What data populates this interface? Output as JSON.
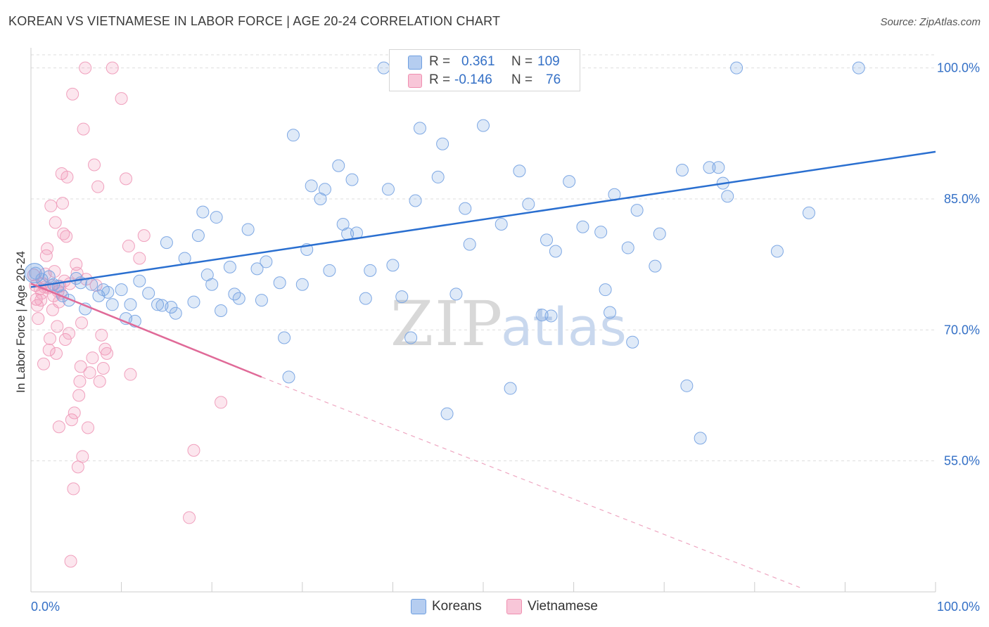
{
  "title": "KOREAN VS VIETNAMESE IN LABOR FORCE | AGE 20-24 CORRELATION CHART",
  "source": "Source: ZipAtlas.com",
  "watermark": {
    "part1": "ZIP",
    "part2": "atlas"
  },
  "legend": {
    "rows": [
      {
        "r_label": "R =",
        "r_value": "0.361",
        "n_label": "N =",
        "n_value": "109"
      },
      {
        "r_label": "R =",
        "r_value": "-0.146",
        "n_label": "N =",
        "n_value": "76"
      }
    ]
  },
  "bottom_legend": [
    {
      "label": "Koreans"
    },
    {
      "label": "Vietnamese"
    }
  ],
  "chart_data": {
    "type": "scatter",
    "title": "KOREAN VS VIETNAMESE IN LABOR FORCE | AGE 20-24 CORRELATION CHART",
    "xlabel": "",
    "ylabel": "In Labor Force | Age 20-24",
    "xlim": [
      0,
      100
    ],
    "ylim": [
      40,
      101.5
    ],
    "x_tick_labels": [
      "0.0%",
      "100.0%"
    ],
    "y_ticks": [
      55,
      70,
      85,
      100
    ],
    "y_tick_labels": [
      "55.0%",
      "70.0%",
      "85.0%",
      "100.0%"
    ],
    "grid": true,
    "legend_position": "top-center",
    "colors": {
      "Koreans": "#6f9fe0",
      "Vietnamese": "#f08fb0",
      "korean_line": "#2a6fd0",
      "vietnamese_line": "#e06a98",
      "tick_label": "#3470c6"
    },
    "series": [
      {
        "name": "Koreans",
        "r": 0.361,
        "n": 109,
        "trend": {
          "x": [
            0,
            100
          ],
          "y": [
            74.9,
            90.4
          ]
        },
        "points": [
          [
            0.5,
            76.5
          ],
          [
            1.2,
            75.8
          ],
          [
            2,
            76.1
          ],
          [
            2.5,
            75.2
          ],
          [
            3,
            75
          ],
          [
            3.5,
            73.9
          ],
          [
            4.2,
            73.4
          ],
          [
            5,
            75.9
          ],
          [
            5.5,
            75.4
          ],
          [
            6,
            72.4
          ],
          [
            6.7,
            75.2
          ],
          [
            7.5,
            73.9
          ],
          [
            8,
            74.6
          ],
          [
            8.5,
            74.3
          ],
          [
            9,
            72.9
          ],
          [
            10,
            74.6
          ],
          [
            10.5,
            71.3
          ],
          [
            11,
            72.9
          ],
          [
            11.5,
            71
          ],
          [
            12,
            75.6
          ],
          [
            13,
            74.2
          ],
          [
            14,
            72.9
          ],
          [
            14.5,
            72.8
          ],
          [
            15,
            80
          ],
          [
            15.5,
            72.6
          ],
          [
            16,
            71.9
          ],
          [
            17,
            78.2
          ],
          [
            18,
            73.2
          ],
          [
            18.5,
            80.8
          ],
          [
            19,
            83.5
          ],
          [
            19.5,
            76.3
          ],
          [
            20,
            75.2
          ],
          [
            20.5,
            82.9
          ],
          [
            21,
            72.2
          ],
          [
            22,
            77.2
          ],
          [
            22.5,
            74.1
          ],
          [
            23,
            73.6
          ],
          [
            24,
            81.5
          ],
          [
            25,
            77
          ],
          [
            25.5,
            73.4
          ],
          [
            26,
            77.8
          ],
          [
            27.5,
            75.4
          ],
          [
            28,
            69.1
          ],
          [
            28.5,
            64.6
          ],
          [
            29,
            92.3
          ],
          [
            30,
            75.2
          ],
          [
            30.5,
            79.2
          ],
          [
            31,
            86.5
          ],
          [
            32,
            85
          ],
          [
            32.5,
            86.1
          ],
          [
            33,
            76.8
          ],
          [
            34,
            88.8
          ],
          [
            34.5,
            82.1
          ],
          [
            35,
            81
          ],
          [
            35.5,
            87.2
          ],
          [
            36,
            81.1
          ],
          [
            37,
            73.6
          ],
          [
            37.5,
            76.8
          ],
          [
            39,
            100
          ],
          [
            39.5,
            86.1
          ],
          [
            40,
            77.4
          ],
          [
            41,
            73.8
          ],
          [
            42,
            69.1
          ],
          [
            42.5,
            84.8
          ],
          [
            43,
            93.1
          ],
          [
            45,
            87.5
          ],
          [
            45.5,
            91.3
          ],
          [
            46,
            60.4
          ],
          [
            47,
            74.1
          ],
          [
            48,
            83.9
          ],
          [
            48.5,
            79.8
          ],
          [
            49,
            100
          ],
          [
            49.5,
            100
          ],
          [
            50,
            93.4
          ],
          [
            52,
            82.1
          ],
          [
            53,
            63.3
          ],
          [
            54,
            88.2
          ],
          [
            55,
            84.4
          ],
          [
            56.5,
            71.7
          ],
          [
            57,
            80.3
          ],
          [
            57.5,
            71.6
          ],
          [
            58,
            79
          ],
          [
            59.5,
            87
          ],
          [
            61,
            81.8
          ],
          [
            63,
            81.2
          ],
          [
            63.5,
            74.6
          ],
          [
            64,
            72
          ],
          [
            64.5,
            85.5
          ],
          [
            66,
            79.4
          ],
          [
            66.5,
            68.6
          ],
          [
            67,
            83.7
          ],
          [
            69,
            77.3
          ],
          [
            69.5,
            81
          ],
          [
            72,
            88.3
          ],
          [
            72.5,
            63.6
          ],
          [
            74,
            57.6
          ],
          [
            75,
            88.6
          ],
          [
            76,
            88.6
          ],
          [
            76.5,
            86.8
          ],
          [
            77,
            85.3
          ],
          [
            78,
            100
          ],
          [
            82.5,
            79
          ],
          [
            86,
            83.4
          ],
          [
            91.5,
            100
          ]
        ]
      },
      {
        "name": "Vietnamese",
        "r": -0.146,
        "n": 76,
        "trend": {
          "x": [
            0,
            25.5
          ],
          "y": [
            75.3,
            64.6
          ],
          "dash_x": [
            25.5,
            85
          ],
          "dash_y": [
            64.6,
            40.5
          ]
        },
        "points": [
          [
            0.3,
            76.3
          ],
          [
            0.5,
            75.1
          ],
          [
            0.6,
            73.5
          ],
          [
            0.7,
            72.8
          ],
          [
            0.8,
            71.3
          ],
          [
            1,
            74.7
          ],
          [
            1.1,
            73.4
          ],
          [
            1.2,
            74.2
          ],
          [
            1.3,
            75.3
          ],
          [
            1.4,
            66.1
          ],
          [
            1.5,
            74.9
          ],
          [
            1.6,
            76.4
          ],
          [
            1.7,
            78.5
          ],
          [
            1.8,
            79.3
          ],
          [
            2,
            67.7
          ],
          [
            2.1,
            69
          ],
          [
            2.2,
            84.2
          ],
          [
            2.3,
            75.1
          ],
          [
            2.4,
            72.3
          ],
          [
            2.5,
            73.9
          ],
          [
            2.6,
            76.7
          ],
          [
            2.7,
            82.3
          ],
          [
            2.8,
            67.3
          ],
          [
            2.9,
            70.4
          ],
          [
            3,
            74.4
          ],
          [
            3.1,
            58.9
          ],
          [
            3.2,
            75
          ],
          [
            3.3,
            74.2
          ],
          [
            3.4,
            87.9
          ],
          [
            3.5,
            84.5
          ],
          [
            3.6,
            81
          ],
          [
            3.7,
            75.6
          ],
          [
            3.8,
            68.9
          ],
          [
            3.9,
            80.7
          ],
          [
            4,
            87.5
          ],
          [
            4.2,
            69.6
          ],
          [
            4.3,
            75.3
          ],
          [
            4.4,
            43.5
          ],
          [
            4.5,
            59.7
          ],
          [
            4.6,
            97
          ],
          [
            4.7,
            51.8
          ],
          [
            4.8,
            60.5
          ],
          [
            5,
            77.5
          ],
          [
            5.1,
            76.5
          ],
          [
            5.2,
            54.3
          ],
          [
            5.3,
            62.5
          ],
          [
            5.4,
            64.1
          ],
          [
            5.5,
            65.8
          ],
          [
            5.6,
            70.8
          ],
          [
            5.7,
            55.5
          ],
          [
            5.8,
            93
          ],
          [
            6,
            100
          ],
          [
            6.1,
            75.8
          ],
          [
            6.3,
            58.8
          ],
          [
            6.5,
            65.1
          ],
          [
            6.8,
            66.8
          ],
          [
            7,
            88.9
          ],
          [
            7.2,
            75.1
          ],
          [
            7.4,
            86.4
          ],
          [
            7.6,
            64.1
          ],
          [
            7.8,
            69.4
          ],
          [
            8,
            65.6
          ],
          [
            8.2,
            67.8
          ],
          [
            8.4,
            67.3
          ],
          [
            9,
            100
          ],
          [
            10,
            96.5
          ],
          [
            10.5,
            87.3
          ],
          [
            10.8,
            79.6
          ],
          [
            11,
            64.9
          ],
          [
            12,
            78.2
          ],
          [
            12.5,
            80.8
          ],
          [
            17.5,
            48.5
          ],
          [
            18,
            56.2
          ],
          [
            21,
            61.7
          ],
          [
            3.1,
            73.2
          ],
          [
            1.9,
            74.8
          ]
        ]
      }
    ]
  }
}
